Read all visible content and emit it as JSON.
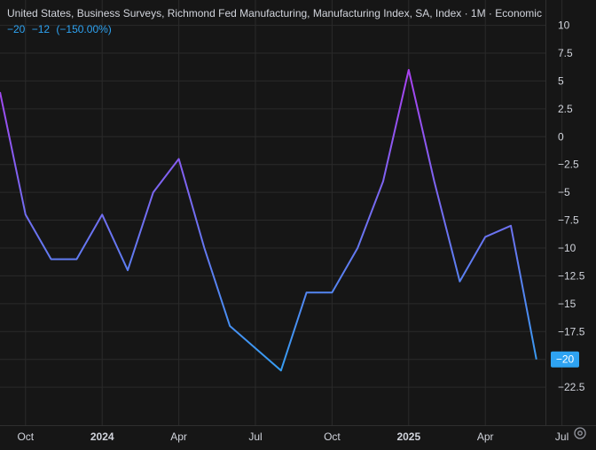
{
  "legend": {
    "title": "United States, Business Surveys, Richmond Fed Manufacturing, Manufacturing Index, SA, Index · 1M · Economic",
    "last_value": "−20",
    "change": "−12",
    "change_pct": "(−150.00%)"
  },
  "last_value_badge": "−20",
  "colors": {
    "background": "#161616",
    "grid": "#2a2a2a",
    "line_start": "#b03cf0",
    "line_end": "#2ea3f2",
    "badge": "#2ea3f2",
    "axis_text": "#d1d4dc"
  },
  "settings_icon": "gear-icon",
  "chart_data": {
    "type": "line",
    "x": [
      "2023-09",
      "2023-10",
      "2023-11",
      "2023-12",
      "2024-01",
      "2024-02",
      "2024-03",
      "2024-04",
      "2024-05",
      "2024-06",
      "2024-07",
      "2024-08",
      "2024-09",
      "2024-10",
      "2024-11",
      "2024-12",
      "2025-01",
      "2025-02",
      "2025-03",
      "2025-04",
      "2025-05",
      "2025-06",
      "2025-07"
    ],
    "series": [
      {
        "values": [
          4,
          -7,
          -11,
          -11,
          -7,
          -12,
          -5,
          -2,
          -10,
          -17,
          -19,
          -21,
          -14,
          -14,
          -10,
          -4,
          6,
          -4,
          -13,
          -9,
          -8,
          -20,
          null
        ]
      }
    ],
    "ylim": [
      -24.4,
      11
    ],
    "yticks": [
      10,
      7.5,
      5,
      2.5,
      0,
      -2.5,
      -5,
      -7.5,
      -10,
      -12.5,
      -15,
      -17.5,
      -20,
      -22.5
    ],
    "ytick_labels": [
      "10",
      "7.5",
      "5",
      "2.5",
      "0",
      "−2.5",
      "−5",
      "−7.5",
      "−10",
      "−12.5",
      "−15",
      "−17.5",
      "−20",
      "−22.5"
    ],
    "xticks": [
      {
        "label": "Oct",
        "month": "2023-10"
      },
      {
        "label": "2024",
        "month": "2024-01",
        "bold": true
      },
      {
        "label": "Apr",
        "month": "2024-04"
      },
      {
        "label": "Jul",
        "month": "2024-07"
      },
      {
        "label": "Oct",
        "month": "2024-10"
      },
      {
        "label": "2025",
        "month": "2025-01",
        "bold": true
      },
      {
        "label": "Apr",
        "month": "2025-04"
      },
      {
        "label": "Jul",
        "month": "2025-07"
      }
    ],
    "grid": true,
    "y_axis_position": "right",
    "title": "United States, Business Surveys, Richmond Fed Manufacturing, Manufacturing Index, SA, Index · 1M · Economic"
  }
}
